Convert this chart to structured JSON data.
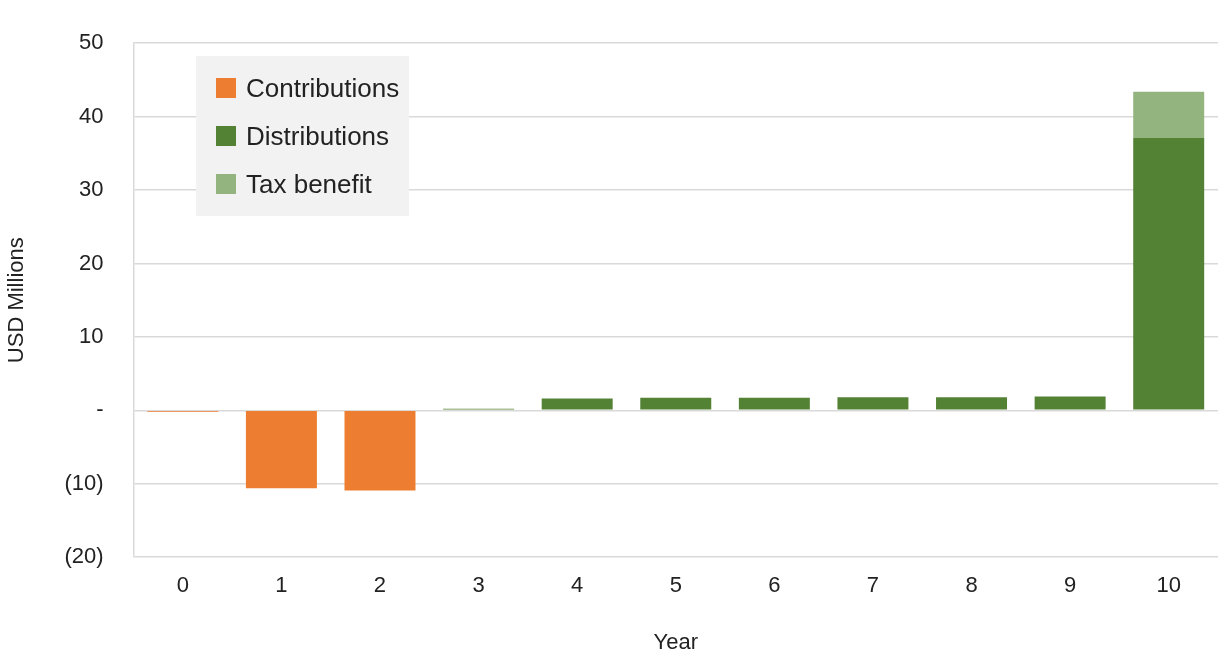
{
  "chart_data": {
    "type": "bar",
    "xlabel": "Year",
    "ylabel": "USD Millions",
    "categories": [
      "0",
      "1",
      "2",
      "3",
      "4",
      "5",
      "6",
      "7",
      "8",
      "9",
      "10"
    ],
    "stacked": true,
    "series": [
      {
        "name": "Contributions",
        "color": "#ed7d31",
        "values": [
          -0.2,
          -10.6,
          -10.9,
          null,
          null,
          null,
          null,
          null,
          null,
          null,
          null
        ]
      },
      {
        "name": "Distributions",
        "color": "#548235",
        "values": [
          null,
          null,
          null,
          0.2,
          1.6,
          1.7,
          1.7,
          1.8,
          1.8,
          1.9,
          37.1
        ]
      },
      {
        "name": "Tax benefit",
        "color": "#93b47e",
        "values": [
          null,
          null,
          null,
          null,
          null,
          null,
          null,
          null,
          null,
          null,
          6.3
        ]
      }
    ],
    "ylim": [
      -20,
      50
    ],
    "yticks": [
      {
        "value": -20,
        "label": "(20)"
      },
      {
        "value": -10,
        "label": "(10)"
      },
      {
        "value": 0,
        "label": "-"
      },
      10,
      20,
      30,
      40,
      50
    ],
    "grid": "y",
    "legend": "top left"
  }
}
